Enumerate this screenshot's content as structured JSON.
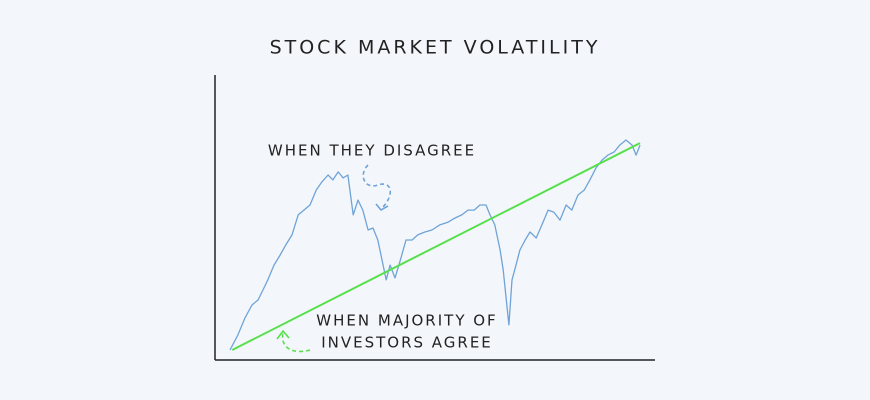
{
  "chart_data": {
    "type": "line",
    "title": "STOCK MARKET VOLATILITY",
    "xlim": [
      0,
      100
    ],
    "ylim": [
      0,
      100
    ],
    "annotations": [
      "WHEN THEY DISAGREE",
      "WHEN MAJORITY OF",
      "INVESTORS AGREE"
    ],
    "series": [
      {
        "color": "#6fa3d8",
        "x": [
          3.4,
          5.2,
          6.8,
          8.4,
          9.8,
          10.9,
          12.0,
          13.4,
          14.8,
          16.1,
          17.5,
          18.9,
          20.2,
          21.6,
          23.0,
          24.3,
          25.7,
          26.8,
          28.0,
          29.1,
          30.2,
          31.4,
          32.5,
          33.6,
          34.8,
          35.9,
          37.0,
          38.2,
          38.9,
          39.8,
          40.9,
          42.0,
          43.4,
          44.8,
          46.1,
          47.7,
          49.3,
          51.1,
          53.0,
          54.5,
          56.1,
          57.5,
          58.9,
          60.2,
          61.6,
          62.5,
          63.6,
          64.8,
          65.5,
          66.1,
          66.8,
          67.5,
          68.4,
          69.3,
          70.5,
          71.6,
          73.0,
          74.3,
          75.7,
          77.0,
          78.4,
          79.8,
          81.1,
          82.5,
          83.9,
          85.2,
          86.6,
          88.0,
          89.3,
          90.7,
          92.0,
          93.4,
          94.8,
          95.7,
          96.6
        ],
        "values": [
          3.5,
          8.8,
          14.7,
          19.3,
          21.1,
          24.6,
          28.1,
          33.3,
          36.8,
          40.4,
          43.9,
          50.9,
          52.6,
          54.4,
          59.6,
          62.5,
          64.9,
          63.2,
          66.0,
          63.9,
          64.9,
          50.9,
          56.1,
          52.6,
          45.6,
          46.3,
          42.1,
          33.3,
          28.1,
          33.3,
          28.8,
          34.4,
          42.1,
          42.1,
          43.9,
          44.9,
          45.6,
          47.4,
          48.4,
          49.8,
          50.9,
          52.6,
          52.6,
          54.4,
          54.4,
          50.9,
          47.4,
          38.6,
          31.6,
          22.8,
          12.3,
          28.1,
          33.3,
          38.6,
          42.1,
          44.9,
          42.8,
          47.4,
          52.6,
          51.9,
          49.1,
          54.4,
          52.6,
          57.9,
          59.6,
          63.2,
          67.4,
          70.2,
          71.9,
          73.0,
          75.4,
          77.2,
          75.4,
          71.9,
          75.4
        ]
      },
      {
        "color": "#57e04b",
        "x": [
          3.9,
          96.6
        ],
        "values": [
          3.5,
          76.1
        ]
      }
    ]
  }
}
